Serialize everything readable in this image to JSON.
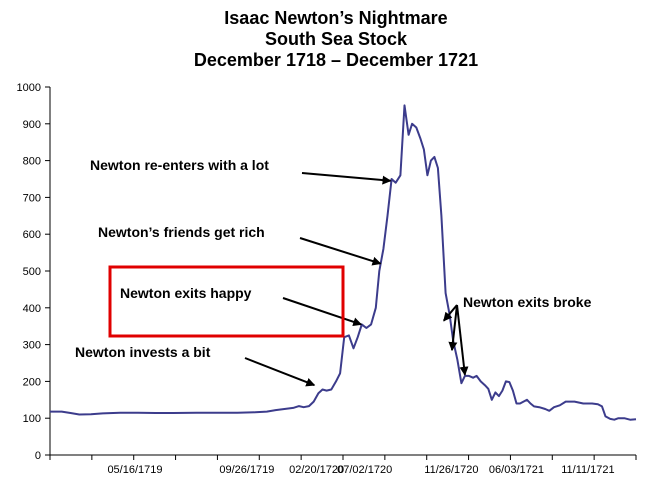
{
  "chart_data": {
    "type": "line",
    "title": [
      "Isaac Newton’s Nightmare",
      "South Sea Stock",
      "December 1718 – December 1721"
    ],
    "xlabel": "",
    "ylabel": "",
    "ylim": [
      0,
      1000
    ],
    "yticks": [
      0,
      100,
      200,
      300,
      400,
      500,
      600,
      700,
      800,
      900,
      1000
    ],
    "xtick_labels": [
      "05/16/1719",
      "09/26/1719",
      "02/20/1720",
      "07/02/1720",
      "11/26/1720",
      "06/03/1721",
      "11/11/1721"
    ],
    "x_range": [
      0,
      100
    ],
    "xtick_positions": [
      14.5,
      33.6,
      45.5,
      53.7,
      68.5,
      79.6,
      91.8
    ],
    "grid": false,
    "line_color": "#3c3c8c",
    "series": [
      {
        "points": [
          [
            0,
            118
          ],
          [
            2,
            118
          ],
          [
            3.5,
            114
          ],
          [
            5,
            110
          ],
          [
            7,
            111
          ],
          [
            9,
            113
          ],
          [
            12,
            115
          ],
          [
            15,
            115
          ],
          [
            18,
            114
          ],
          [
            21,
            114
          ],
          [
            25,
            115
          ],
          [
            29,
            115
          ],
          [
            32,
            115
          ],
          [
            35,
            116
          ],
          [
            37,
            118
          ],
          [
            38.5,
            122
          ],
          [
            40,
            125
          ],
          [
            41.5,
            128
          ],
          [
            42.5,
            133
          ],
          [
            43.3,
            130
          ],
          [
            44.2,
            133
          ],
          [
            45,
            145
          ],
          [
            45.8,
            168
          ],
          [
            46.5,
            178
          ],
          [
            47.2,
            175
          ],
          [
            48,
            178
          ],
          [
            48.8,
            200
          ],
          [
            49.5,
            222
          ],
          [
            50.2,
            320
          ],
          [
            51,
            325
          ],
          [
            51.8,
            290
          ],
          [
            52.5,
            320
          ],
          [
            53.2,
            355
          ],
          [
            54,
            345
          ],
          [
            54.8,
            355
          ],
          [
            55.6,
            400
          ],
          [
            56.2,
            500
          ],
          [
            56.9,
            560
          ],
          [
            57.6,
            650
          ],
          [
            58.3,
            750
          ],
          [
            59,
            740
          ],
          [
            59.8,
            760
          ],
          [
            60.5,
            950
          ],
          [
            61.2,
            870
          ],
          [
            61.8,
            900
          ],
          [
            62.5,
            890
          ],
          [
            63.2,
            860
          ],
          [
            63.8,
            830
          ],
          [
            64.4,
            760
          ],
          [
            65,
            800
          ],
          [
            65.6,
            810
          ],
          [
            66.2,
            780
          ],
          [
            66.8,
            650
          ],
          [
            67.5,
            440
          ],
          [
            68.2,
            380
          ],
          [
            68.8,
            310
          ],
          [
            69.5,
            260
          ],
          [
            70.2,
            195
          ],
          [
            70.8,
            215
          ],
          [
            71.5,
            215
          ],
          [
            72.2,
            210
          ],
          [
            72.8,
            215
          ],
          [
            73.5,
            200
          ],
          [
            74.2,
            190
          ],
          [
            74.8,
            180
          ],
          [
            75.4,
            150
          ],
          [
            76,
            170
          ],
          [
            76.6,
            160
          ],
          [
            77.2,
            175
          ],
          [
            77.8,
            200
          ],
          [
            78.4,
            198
          ],
          [
            79,
            175
          ],
          [
            79.6,
            140
          ],
          [
            80.2,
            140
          ],
          [
            80.8,
            145
          ],
          [
            81.4,
            150
          ],
          [
            82,
            140
          ],
          [
            82.6,
            132
          ],
          [
            83.5,
            130
          ],
          [
            84.5,
            125
          ],
          [
            85.2,
            120
          ],
          [
            86,
            130
          ],
          [
            87,
            135
          ],
          [
            88,
            145
          ],
          [
            89.5,
            145
          ],
          [
            91,
            140
          ],
          [
            92.5,
            140
          ],
          [
            93.5,
            138
          ],
          [
            94.2,
            132
          ],
          [
            94.8,
            105
          ],
          [
            95.6,
            98
          ],
          [
            96.3,
            96
          ],
          [
            97,
            100
          ],
          [
            98,
            100
          ],
          [
            99,
            96
          ],
          [
            100,
            97
          ]
        ]
      }
    ],
    "annotations": [
      {
        "text": "Newton re-enters with a lot",
        "target": [
          58.1,
          745
        ]
      },
      {
        "text": "Newton’s friends get rich",
        "target": [
          56.4,
          520
        ]
      },
      {
        "text": "Newton exits happy",
        "target": [
          53.1,
          355
        ],
        "highlighted": true,
        "box_color": "#e00000"
      },
      {
        "text": "Newton exits broke",
        "targets": [
          [
            67.2,
            365
          ],
          [
            68.6,
            285
          ],
          [
            70.8,
            218
          ]
        ]
      },
      {
        "text": "Newton invests a bit",
        "target": [
          45.1,
          190
        ]
      }
    ]
  }
}
